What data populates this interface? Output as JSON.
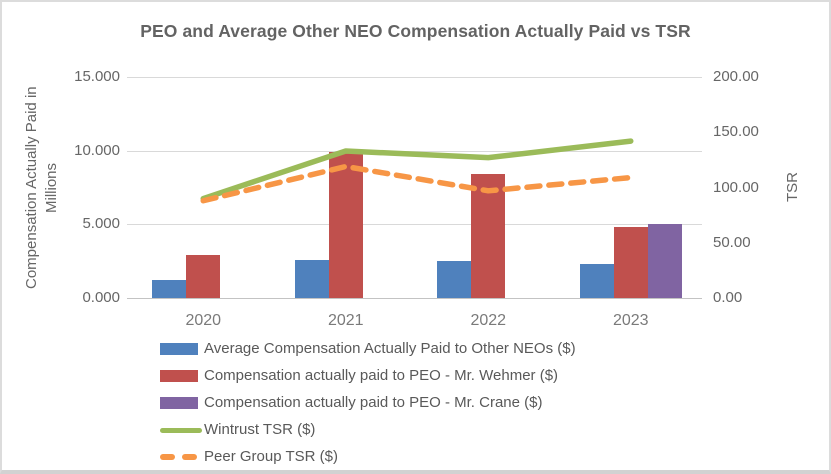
{
  "window": {
    "background": "#ffffff",
    "border_color": "#dcdcdc",
    "text_color": "#595959"
  },
  "chart_data": {
    "type": "bar",
    "subtype": "combo-bar-line-dual-axis",
    "title": "PEO and Average Other NEO Compensation Actually Paid vs TSR",
    "categories": [
      "2020",
      "2021",
      "2022",
      "2023"
    ],
    "left_axis": {
      "label": "Compensation Actually Paid in Millions",
      "ticks": [
        {
          "text": "15.000",
          "value": 15
        },
        {
          "text": "10.000",
          "value": 10
        },
        {
          "text": "5.000",
          "value": 5
        },
        {
          "text": "0.000",
          "value": 0
        }
      ],
      "range": [
        0,
        15
      ],
      "grid": true
    },
    "right_axis": {
      "label": "TSR",
      "ticks": [
        {
          "text": "200.00",
          "value": 200
        },
        {
          "text": "150.00",
          "value": 150
        },
        {
          "text": "100.00",
          "value": 100
        },
        {
          "text": "50.00",
          "value": 50
        },
        {
          "text": "0.00",
          "value": 0
        }
      ],
      "range": [
        0,
        200
      ]
    },
    "bar_series": [
      {
        "name": "Average Compensation Actually Paid to Other NEOs ($)",
        "color": "#4F81BD",
        "axis": "left",
        "values": [
          1.2,
          2.6,
          2.5,
          2.3
        ]
      },
      {
        "name": "Compensation actually paid to PEO - Mr. Wehmer ($)",
        "color": "#C0504D",
        "axis": "left",
        "values": [
          2.9,
          9.9,
          8.4,
          4.8
        ]
      },
      {
        "name": "Compensation actually paid to PEO - Mr. Crane ($)",
        "color": "#8064A2",
        "axis": "left",
        "values": [
          0,
          0,
          0,
          5.0
        ]
      }
    ],
    "line_series": [
      {
        "name": "Wintrust TSR ($)",
        "color": "#9BBB59",
        "style": "solid",
        "axis": "right",
        "values": [
          90,
          133,
          127,
          142
        ]
      },
      {
        "name": "Peer Group TSR ($)",
        "color": "#F79646",
        "style": "dashed",
        "axis": "right",
        "values": [
          88,
          119,
          97,
          109
        ]
      }
    ],
    "legend_position": "bottom-left",
    "gridline_color": "#d9d9d9"
  }
}
